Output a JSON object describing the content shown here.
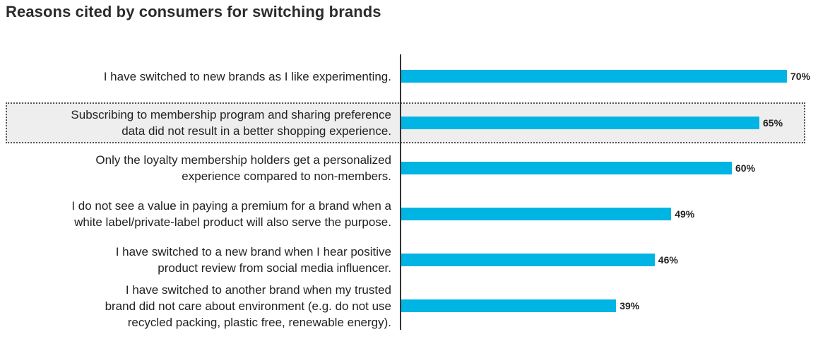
{
  "title": "Reasons cited by consumers for switching brands",
  "colors": {
    "bar": "#00b4e3",
    "highlight_bg": "#eeeeee"
  },
  "chart_data": {
    "type": "bar",
    "orientation": "horizontal",
    "title": "Reasons cited by consumers for switching brands",
    "xlabel": "",
    "ylabel": "",
    "xlim": [
      0,
      100
    ],
    "grid": false,
    "highlighted_index": 1,
    "categories": [
      "I have switched to new brands as I like experimenting.",
      "Subscribing to membership program and sharing preference data did not result in a better shopping experience.",
      "Only the loyalty membership holders get a personalized experience compared to non-members.",
      "I do not see a value in paying a premium for a brand when a white label/private-label product will also serve the purpose.",
      "I have switched to a new brand when I hear positive product review from social media influencer.",
      "I have switched to another brand when my trusted brand did not care about environment (e.g. do not use recycled packing, plastic free, renewable energy)."
    ],
    "label_lines": [
      [
        "I have switched to new brands as I like experimenting."
      ],
      [
        "Subscribing to membership program and sharing preference",
        "data did not result in a better shopping experience."
      ],
      [
        "Only the loyalty membership holders get a personalized",
        "experience compared to non-members."
      ],
      [
        "I do not see a value in paying a premium for a brand when a",
        "white label/private-label product will also serve the purpose."
      ],
      [
        "I have switched to a new brand when I hear positive",
        "product review from social media influencer."
      ],
      [
        "I have switched to another brand when my trusted",
        "brand did not care about environment (e.g. do not use",
        "recycled packing, plastic free, renewable energy)."
      ]
    ],
    "values": [
      70,
      65,
      60,
      49,
      46,
      39
    ],
    "value_labels": [
      "70%",
      "65%",
      "60%",
      "49%",
      "46%",
      "39%"
    ]
  }
}
